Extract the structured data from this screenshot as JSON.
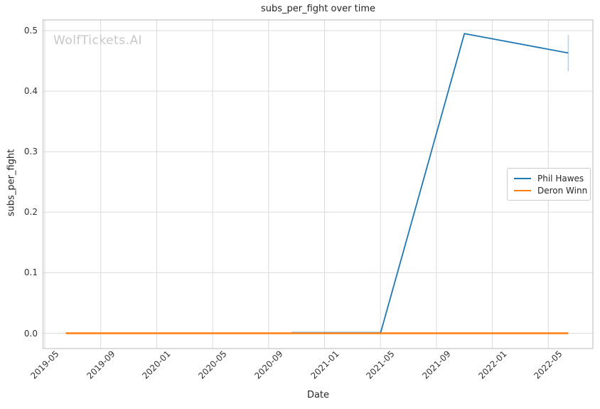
{
  "watermark": "WolfTickets.AI",
  "chart_data": {
    "type": "line",
    "title": "subs_per_fight over time",
    "xlabel": "Date",
    "ylabel": "subs_per_fight",
    "x_tick_labels": [
      "2019-05",
      "2019-09",
      "2020-01",
      "2020-05",
      "2020-09",
      "2021-01",
      "2021-05",
      "2021-09",
      "2022-01",
      "2022-05"
    ],
    "y_tick_labels": [
      "0.0",
      "0.1",
      "0.2",
      "0.3",
      "0.4",
      "0.5"
    ],
    "ylim": [
      -0.025,
      0.52
    ],
    "grid": true,
    "legend_position": "center right",
    "colors": {
      "grid": "#dbdbdb",
      "spine": "#c6c6c6",
      "error_bar": "rgba(31,119,180,0.32)"
    },
    "series": [
      {
        "name": "Phil Hawes",
        "color": "#1f77b4",
        "points": [
          [
            "2020-10-20",
            0.0
          ],
          [
            "2021-05-01",
            0.0
          ],
          [
            "2021-11-01",
            0.495
          ],
          [
            "2022-06-14",
            0.463
          ]
        ],
        "error_bar_last": {
          "x": "2022-06-14",
          "low": 0.433,
          "high": 0.493
        }
      },
      {
        "name": "Deron Winn",
        "color": "#ff7f0e",
        "points": [
          [
            "2019-06-16",
            0.0
          ],
          [
            "2022-06-14",
            0.0
          ]
        ]
      }
    ]
  }
}
